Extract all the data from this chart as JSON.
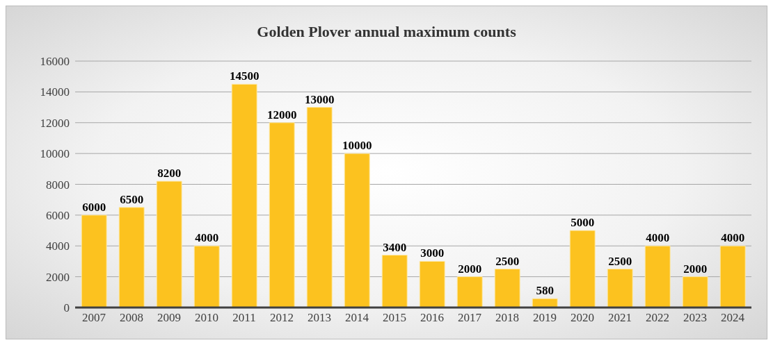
{
  "chart_data": {
    "type": "bar",
    "title": "Golden Plover annual maximum counts",
    "categories": [
      "2007",
      "2008",
      "2009",
      "2010",
      "2011",
      "2012",
      "2013",
      "2014",
      "2015",
      "2016",
      "2017",
      "2018",
      "2019",
      "2020",
      "2021",
      "2022",
      "2023",
      "2024"
    ],
    "values": [
      6000,
      6500,
      8200,
      4000,
      14500,
      12000,
      13000,
      10000,
      3400,
      3000,
      2000,
      2500,
      580,
      5000,
      2500,
      4000,
      2000,
      4000
    ],
    "color": "#fcc21f",
    "ylim": [
      0,
      16000
    ],
    "yticks": [
      0,
      2000,
      4000,
      6000,
      8000,
      10000,
      12000,
      14000,
      16000
    ],
    "grid": "y",
    "legend": false,
    "data_labels": true
  }
}
